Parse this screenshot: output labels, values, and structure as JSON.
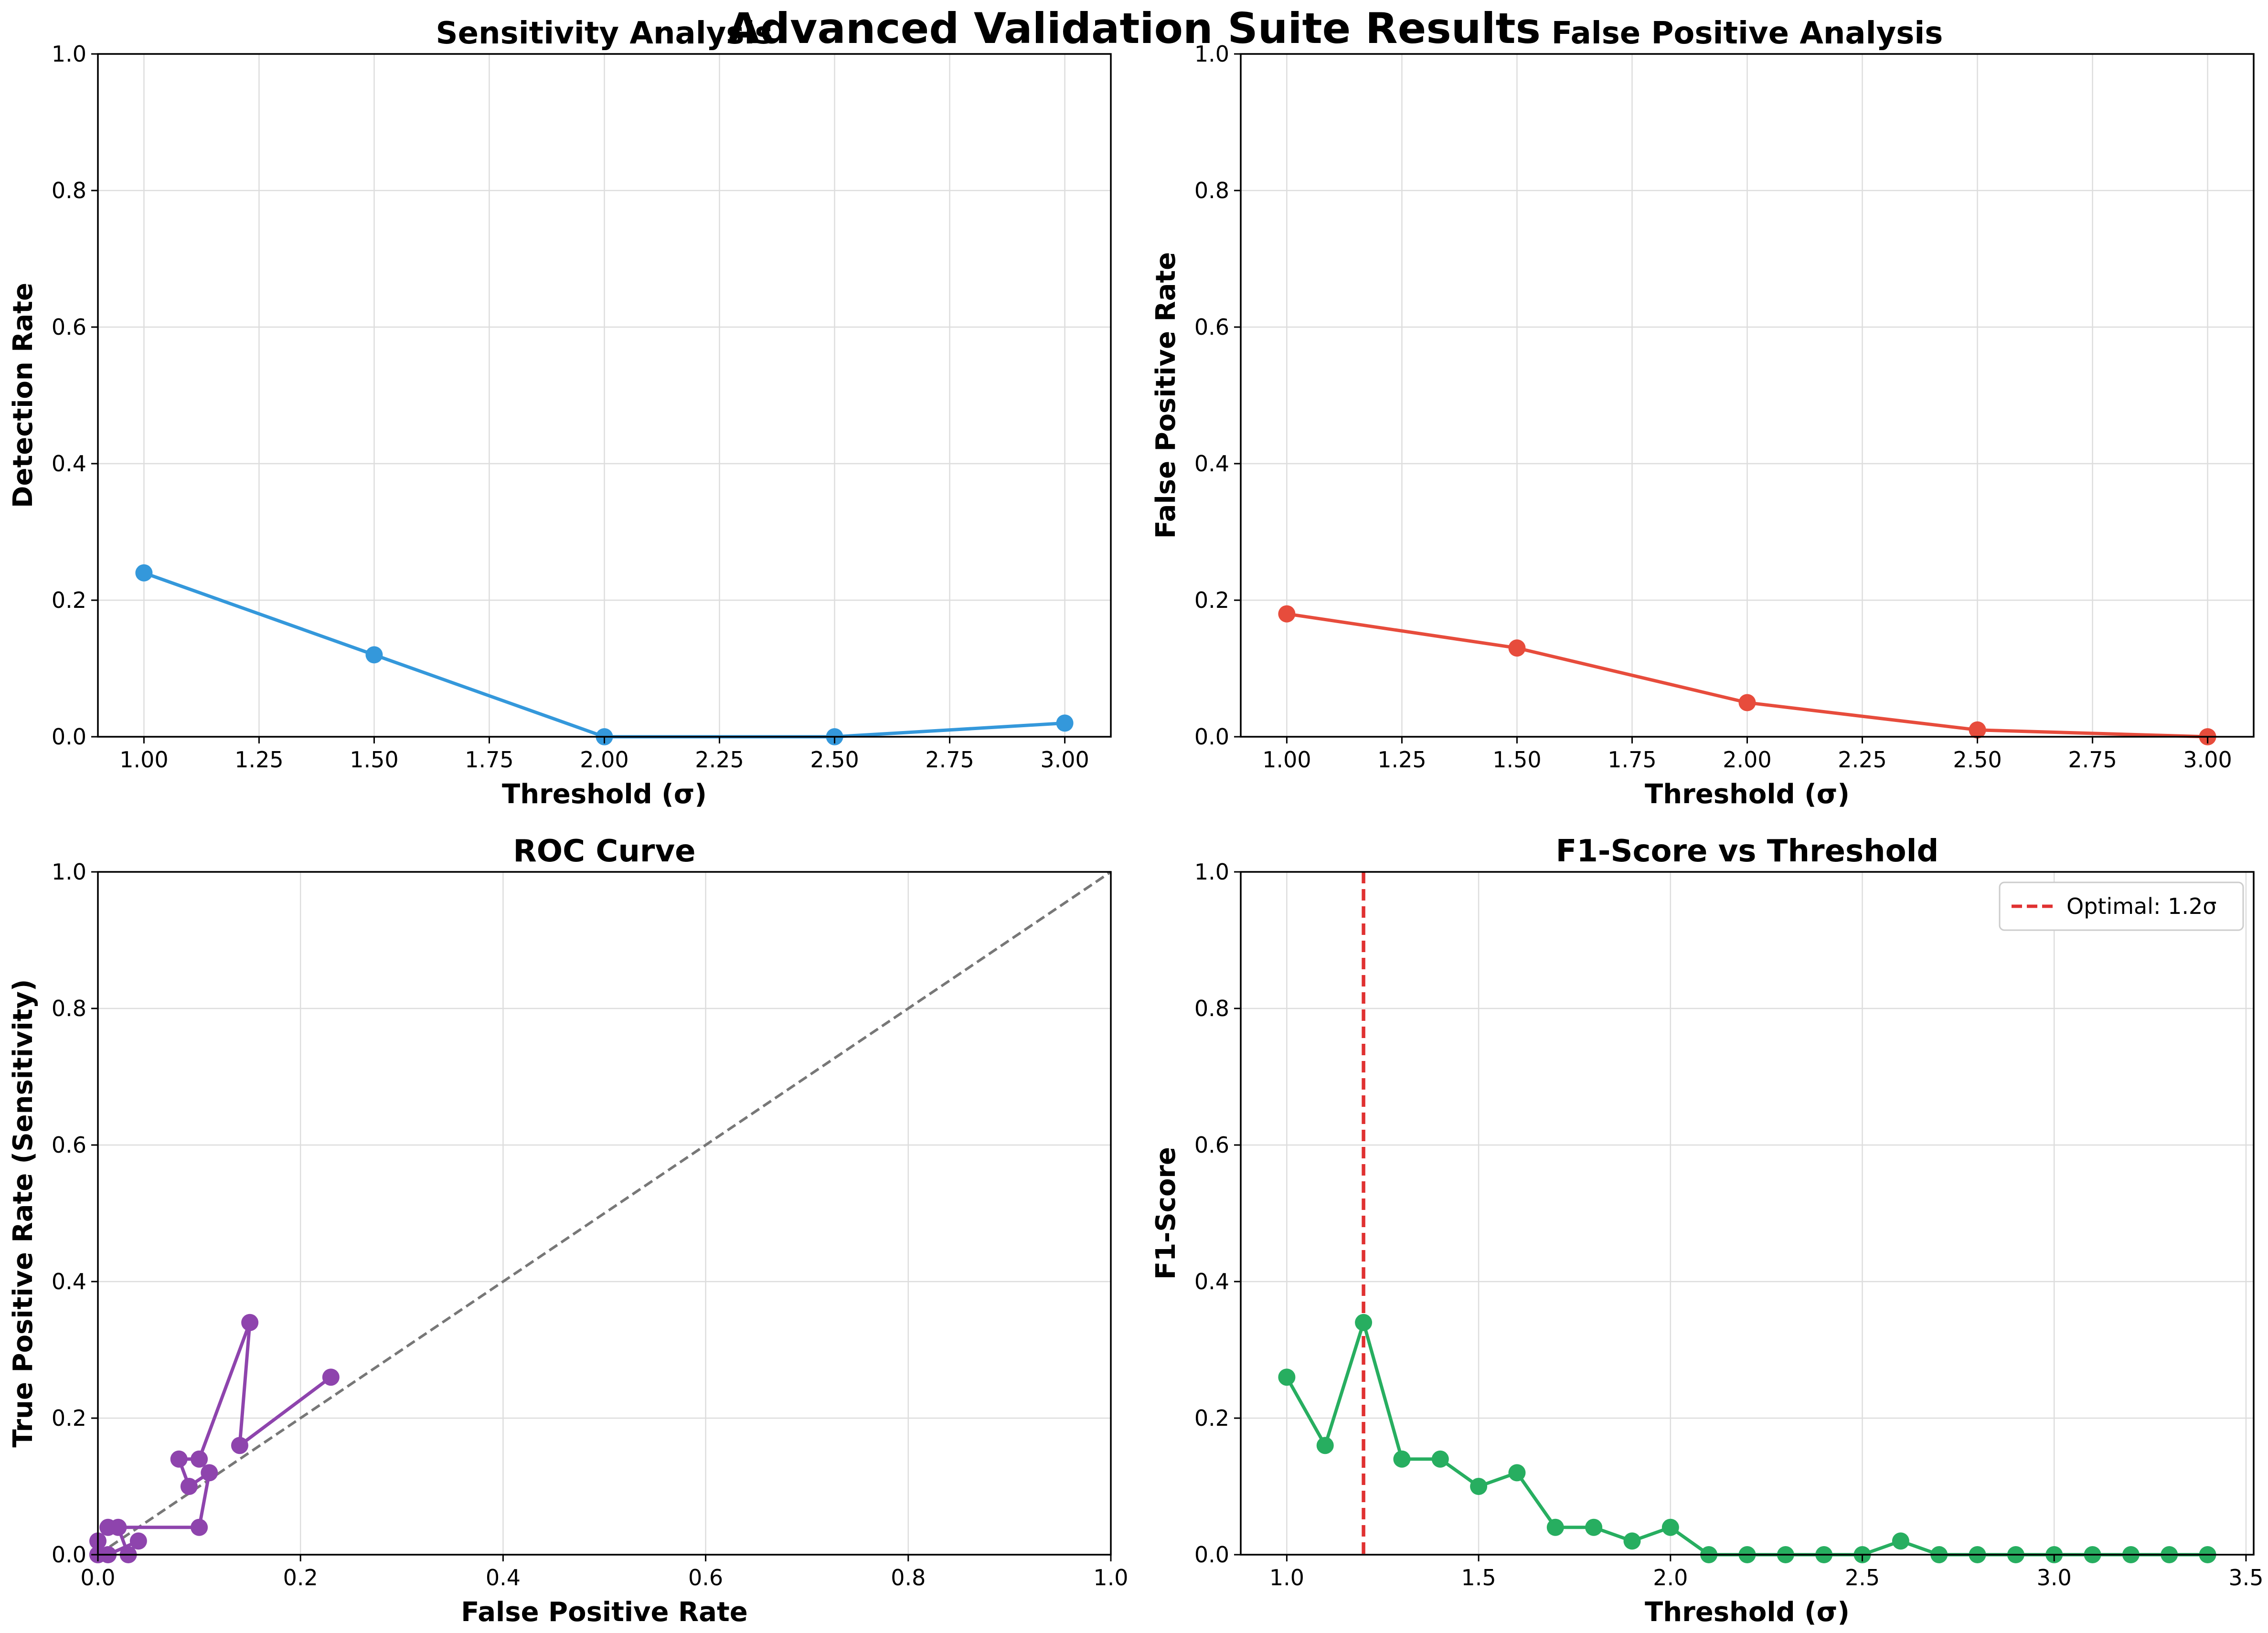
{
  "suptitle": "Advanced Validation Suite Results",
  "chart_data": [
    {
      "type": "line",
      "title": "Sensitivity Analysis",
      "xlabel": "Threshold (σ)",
      "ylabel": "Detection Rate",
      "xlim": [
        0.9,
        3.1
      ],
      "ylim": [
        0,
        1
      ],
      "xticks": [
        1.0,
        1.25,
        1.5,
        1.75,
        2.0,
        2.25,
        2.5,
        2.75,
        3.0
      ],
      "xtick_labels": [
        "1.00",
        "1.25",
        "1.50",
        "1.75",
        "2.00",
        "2.25",
        "2.50",
        "2.75",
        "3.00"
      ],
      "yticks": [
        0.0,
        0.2,
        0.4,
        0.6,
        0.8,
        1.0
      ],
      "ytick_labels": [
        "0.0",
        "0.2",
        "0.4",
        "0.6",
        "0.8",
        "1.0"
      ],
      "grid": true,
      "color": "#3498db",
      "series": [
        {
          "x": [
            1.0,
            1.5,
            2.0,
            2.5,
            3.0
          ],
          "values": [
            0.24,
            0.12,
            0.0,
            0.0,
            0.02
          ]
        }
      ]
    },
    {
      "type": "line",
      "title": "False Positive Analysis",
      "xlabel": "Threshold (σ)",
      "ylabel": "False Positive Rate",
      "xlim": [
        0.9,
        3.1
      ],
      "ylim": [
        0,
        1
      ],
      "xticks": [
        1.0,
        1.25,
        1.5,
        1.75,
        2.0,
        2.25,
        2.5,
        2.75,
        3.0
      ],
      "xtick_labels": [
        "1.00",
        "1.25",
        "1.50",
        "1.75",
        "2.00",
        "2.25",
        "2.50",
        "2.75",
        "3.00"
      ],
      "yticks": [
        0.0,
        0.2,
        0.4,
        0.6,
        0.8,
        1.0
      ],
      "ytick_labels": [
        "0.0",
        "0.2",
        "0.4",
        "0.6",
        "0.8",
        "1.0"
      ],
      "grid": true,
      "color": "#e74c3c",
      "series": [
        {
          "x": [
            1.0,
            1.5,
            2.0,
            2.5,
            3.0
          ],
          "values": [
            0.18,
            0.13,
            0.05,
            0.01,
            0.0
          ]
        }
      ]
    },
    {
      "type": "line",
      "title": "ROC Curve",
      "xlabel": "False Positive Rate",
      "ylabel": "True Positive Rate (Sensitivity)",
      "xlim": [
        0,
        1
      ],
      "ylim": [
        0,
        1
      ],
      "xticks": [
        0.0,
        0.2,
        0.4,
        0.6,
        0.8,
        1.0
      ],
      "xtick_labels": [
        "0.0",
        "0.2",
        "0.4",
        "0.6",
        "0.8",
        "1.0"
      ],
      "yticks": [
        0.0,
        0.2,
        0.4,
        0.6,
        0.8,
        1.0
      ],
      "ytick_labels": [
        "0.0",
        "0.2",
        "0.4",
        "0.6",
        "0.8",
        "1.0"
      ],
      "grid": true,
      "color": "#8e44ad",
      "diagonal": {
        "x": [
          0,
          1
        ],
        "values": [
          0,
          1
        ],
        "color": "#777777",
        "style": "dashed"
      },
      "series": [
        {
          "x": [
            0.23,
            0.14,
            0.15,
            0.1,
            0.08,
            0.09,
            0.11,
            0.1,
            0.01,
            0.02,
            0.03,
            0.04,
            0.01,
            0.0,
            0.0,
            0.0,
            0.0
          ],
          "values": [
            0.26,
            0.16,
            0.34,
            0.14,
            0.14,
            0.1,
            0.12,
            0.04,
            0.04,
            0.04,
            0.0,
            0.02,
            0.0,
            0.0,
            0.0,
            0.02,
            0.0
          ]
        }
      ]
    },
    {
      "type": "line",
      "title": "F1-Score vs Threshold",
      "xlabel": "Threshold (σ)",
      "ylabel": "F1-Score",
      "xlim": [
        0.88,
        3.52
      ],
      "ylim": [
        0,
        1
      ],
      "xticks": [
        1.0,
        1.5,
        2.0,
        2.5,
        3.0,
        3.5
      ],
      "xtick_labels": [
        "1.0",
        "1.5",
        "2.0",
        "2.5",
        "3.0",
        "3.5"
      ],
      "yticks": [
        0.0,
        0.2,
        0.4,
        0.6,
        0.8,
        1.0
      ],
      "ytick_labels": [
        "0.0",
        "0.2",
        "0.4",
        "0.6",
        "0.8",
        "1.0"
      ],
      "grid": true,
      "color": "#27ae60",
      "vline": {
        "x": 1.2,
        "color": "#e03131",
        "label": "Optimal: 1.2σ"
      },
      "legend": "top-right",
      "series": [
        {
          "x": [
            1.0,
            1.1,
            1.2,
            1.3,
            1.4,
            1.5,
            1.6,
            1.7,
            1.8,
            1.9,
            2.0,
            2.1,
            2.2,
            2.3,
            2.4,
            2.5,
            2.6,
            2.7,
            2.8,
            2.9,
            3.0,
            3.1,
            3.2,
            3.3,
            3.4
          ],
          "values": [
            0.26,
            0.16,
            0.34,
            0.14,
            0.14,
            0.1,
            0.12,
            0.04,
            0.04,
            0.02,
            0.04,
            0.0,
            0.0,
            0.0,
            0.0,
            0.0,
            0.02,
            0.0,
            0.0,
            0.0,
            0.0,
            0.0,
            0.0,
            0.0,
            0.0
          ]
        }
      ]
    }
  ]
}
